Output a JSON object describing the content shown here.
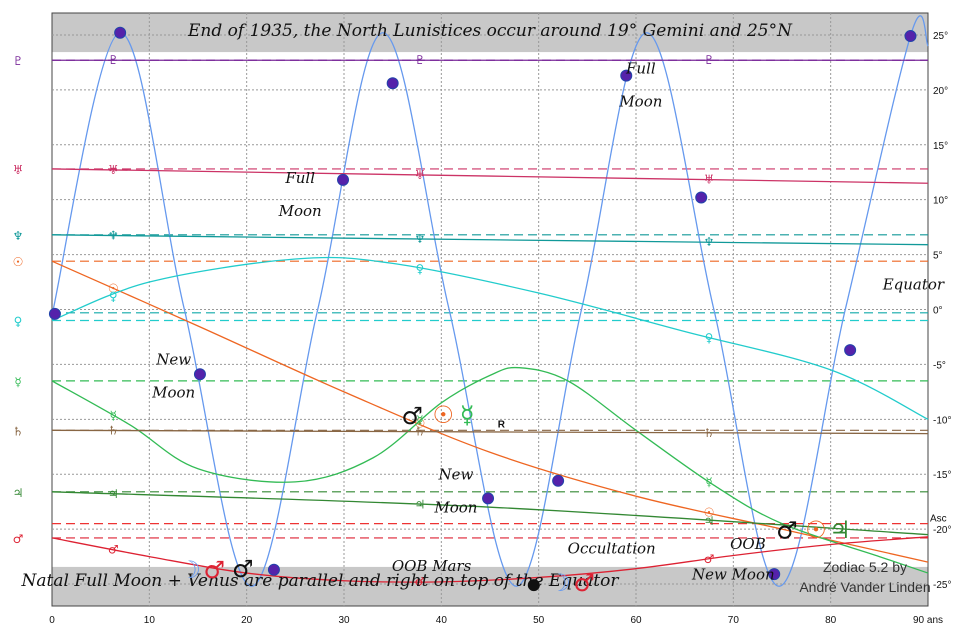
{
  "chart_data": {
    "type": "line",
    "title": "End of 1935, the North Lunistices occur around 19° Gemini and 25°N",
    "footer": "Natal Full Moon + Venus are parallel and right on top of the Equator",
    "credit_line1": "Zodiac 5.2 by",
    "credit_line2": "André Vander Linden",
    "xlabel": "",
    "ylabel": "",
    "xlim": [
      0,
      90
    ],
    "ylim": [
      -27,
      27
    ],
    "x_ticks": [
      "0",
      "10",
      "20",
      "30",
      "40",
      "50",
      "60",
      "70",
      "80",
      "90 ans"
    ],
    "y_ticks": [
      "25°",
      "20°",
      "15°",
      "10°",
      "5°",
      "0°",
      "-5°",
      "-10°",
      "-15°",
      "-20°",
      "-25°"
    ],
    "grid": true,
    "oob_band": 23.44,
    "series": [
      {
        "symbol": "☽",
        "color": "#6699ee",
        "style": "sine",
        "points": [
          [
            0,
            -0.5
          ],
          [
            7,
            25.2
          ],
          [
            13.6,
            0
          ],
          [
            20.5,
            -25.2
          ],
          [
            27.3,
            0
          ],
          [
            34,
            25.2
          ],
          [
            40.8,
            0
          ],
          [
            47.7,
            -25.2
          ],
          [
            54.4,
            0
          ],
          [
            61.1,
            25.2
          ],
          [
            68,
            0
          ],
          [
            74.7,
            -25.2
          ],
          [
            81.5,
            0
          ],
          [
            88.3,
            25.2
          ],
          [
            90,
            24
          ]
        ]
      },
      {
        "symbol": "♇",
        "color": "#7a2a9a",
        "natal": 22.7,
        "points": [
          [
            0,
            22.7
          ],
          [
            90,
            22.7
          ]
        ]
      },
      {
        "symbol": "♅",
        "color": "#cc3366",
        "natal": 12.8,
        "points": [
          [
            0,
            12.8
          ],
          [
            90,
            11.5
          ]
        ]
      },
      {
        "symbol": "♆",
        "color": "#119999",
        "natal": 6.8,
        "points": [
          [
            0,
            6.8
          ],
          [
            90,
            5.9
          ]
        ]
      },
      {
        "symbol": "☉",
        "color": "#ee6622",
        "natal": 4.4,
        "points": [
          [
            0,
            4.4
          ],
          [
            15,
            -1.5
          ],
          [
            30,
            -7.5
          ],
          [
            45,
            -13
          ],
          [
            60,
            -17
          ],
          [
            75,
            -20
          ],
          [
            90,
            -23
          ]
        ]
      },
      {
        "symbol": "♀",
        "color": "#22cccc",
        "natal": -1.0,
        "points": [
          [
            0,
            -1
          ],
          [
            10,
            2.5
          ],
          [
            25,
            4.6
          ],
          [
            35,
            4.2
          ],
          [
            50,
            1.5
          ],
          [
            65,
            -2
          ],
          [
            80,
            -5.5
          ],
          [
            90,
            -10
          ]
        ]
      },
      {
        "symbol": "☿",
        "color": "#33bb55",
        "natal": -6.5,
        "points": [
          [
            0,
            -6.5
          ],
          [
            8,
            -10.5
          ],
          [
            15,
            -14.5
          ],
          [
            25,
            -15.7
          ],
          [
            33,
            -13.5
          ],
          [
            40,
            -8.5
          ],
          [
            45,
            -6
          ],
          [
            48,
            -5.3
          ],
          [
            53,
            -6.5
          ],
          [
            60,
            -11
          ],
          [
            68,
            -16
          ],
          [
            75,
            -19.5
          ],
          [
            85,
            -22.5
          ],
          [
            90,
            -24
          ]
        ]
      },
      {
        "symbol": "♄",
        "color": "#886644",
        "natal": -11.0,
        "points": [
          [
            0,
            -11
          ],
          [
            90,
            -11.3
          ]
        ]
      },
      {
        "symbol": "♃",
        "color": "#338833",
        "natal": -16.6,
        "points": [
          [
            0,
            -16.6
          ],
          [
            45,
            -18
          ],
          [
            90,
            -20.5
          ]
        ]
      },
      {
        "symbol": "♂",
        "color": "#dd2233",
        "natal": -20.8,
        "points": [
          [
            0,
            -20.8
          ],
          [
            10,
            -22.5
          ],
          [
            20,
            -24
          ],
          [
            30,
            -24.7
          ],
          [
            40,
            -24.8
          ],
          [
            50,
            -24.4
          ],
          [
            60,
            -23.6
          ],
          [
            70,
            -22.4
          ],
          [
            80,
            -21.4
          ],
          [
            90,
            -20.7
          ]
        ]
      }
    ],
    "natal_lines": [
      {
        "symbol": "Asc",
        "color": "#ee3333",
        "y": -19.5
      },
      {
        "symbol": "",
        "color": "#11aaaa",
        "y": -0.3
      }
    ],
    "annotations": [
      {
        "text": "Full",
        "x": 60.5,
        "y": 21.5
      },
      {
        "text": "Moon",
        "x": 60.5,
        "y": 18.5
      },
      {
        "text": "Full",
        "x": 25.5,
        "y": 11.5
      },
      {
        "text": "Moon",
        "x": 25.5,
        "y": 8.5
      },
      {
        "text": "New",
        "x": 12.5,
        "y": -5
      },
      {
        "text": "Moon",
        "x": 12.5,
        "y": -8
      },
      {
        "text": "New",
        "x": 41.5,
        "y": -15.5
      },
      {
        "text": "Moon",
        "x": 41.5,
        "y": -18.5
      },
      {
        "text": "Equator",
        "x": 88.5,
        "y": 1.8
      },
      {
        "text": "Occultation",
        "x": 57.5,
        "y": -22.2
      },
      {
        "text": "OOB Mars",
        "x": 39,
        "y": -23.8
      },
      {
        "text": "OOB",
        "x": 71.5,
        "y": -21.8
      },
      {
        "text": "New Moon",
        "x": 70,
        "y": -24.6
      }
    ],
    "moon_marks": [
      [
        7,
        25.2
      ],
      [
        35,
        20.6
      ],
      [
        29.9,
        11.8
      ],
      [
        66.7,
        10.2
      ],
      [
        59,
        21.3
      ],
      [
        15.2,
        -5.9
      ],
      [
        44.8,
        -17.2
      ],
      [
        52,
        -15.6
      ],
      [
        82,
        -3.7
      ],
      [
        74.2,
        -24.1
      ],
      [
        22.8,
        -23.7
      ],
      [
        0.3,
        -0.4
      ],
      [
        88.2,
        24.9
      ]
    ]
  }
}
